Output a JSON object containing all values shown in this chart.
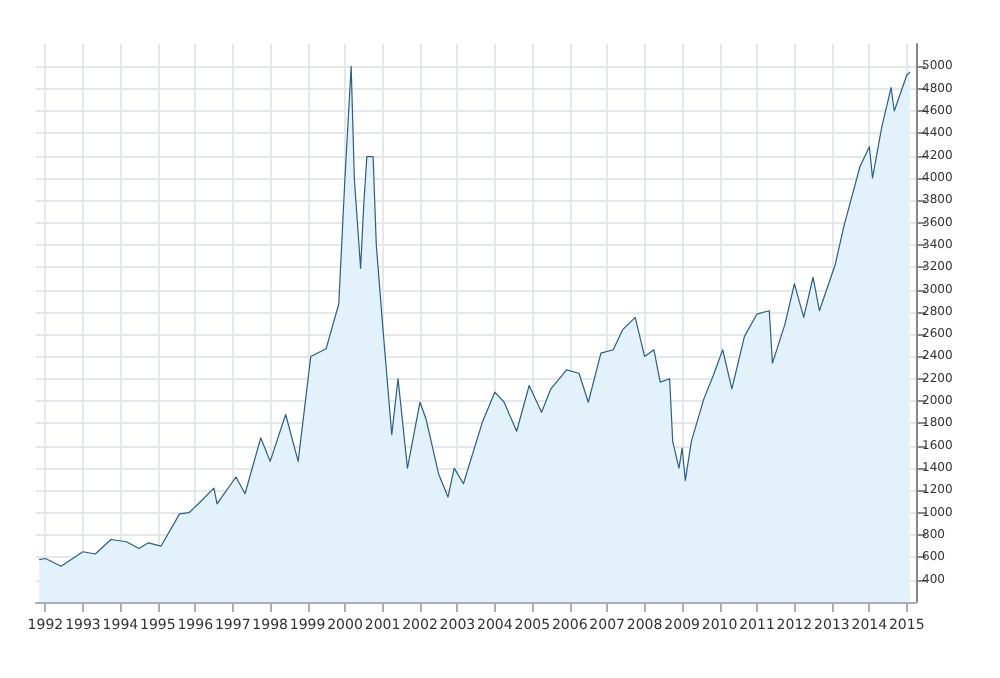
{
  "chart_data": {
    "type": "area",
    "x": [
      "1991-11",
      "1992-01",
      "1992-06",
      "1993-01",
      "1993-05",
      "1993-10",
      "1994-03",
      "1994-07",
      "1994-10",
      "1995-02",
      "1995-08",
      "1995-11",
      "1996-02",
      "1996-07",
      "1996-08",
      "1997-02",
      "1997-05",
      "1997-10",
      "1998-01",
      "1998-06",
      "1998-10",
      "1999-02",
      "1999-07",
      "1999-11",
      "2000-01",
      "2000-03",
      "2000-04",
      "2000-06",
      "2000-07",
      "2000-08",
      "2000-10",
      "2000-11",
      "2001-01",
      "2001-04",
      "2001-06",
      "2001-09",
      "2002-01",
      "2002-03",
      "2002-07",
      "2002-10",
      "2002-12",
      "2003-03",
      "2003-09",
      "2004-01",
      "2004-04",
      "2004-08",
      "2004-12",
      "2005-04",
      "2005-07",
      "2005-12",
      "2006-04",
      "2006-07",
      "2006-11",
      "2007-03",
      "2007-06",
      "2007-10",
      "2008-01",
      "2008-04",
      "2008-06",
      "2008-09",
      "2008-10",
      "2008-12",
      "2009-01",
      "2009-02",
      "2009-04",
      "2009-08",
      "2009-11",
      "2010-02",
      "2010-05",
      "2010-09",
      "2011-01",
      "2011-05",
      "2011-06",
      "2011-10",
      "2012-01",
      "2012-04",
      "2012-07",
      "2012-09",
      "2013-02",
      "2013-05",
      "2013-10",
      "2014-01",
      "2014-02",
      "2014-05",
      "2014-08",
      "2014-09",
      "2015-01",
      "2015-02"
    ],
    "series": [
      {
        "color": "#2a5f84",
        "values": [
          580,
          590,
          520,
          650,
          630,
          760,
          740,
          680,
          730,
          700,
          990,
          1000,
          1080,
          1220,
          1080,
          1320,
          1170,
          1670,
          1460,
          1880,
          1460,
          2400,
          2470,
          2870,
          4010,
          5000,
          3990,
          3190,
          3750,
          4190,
          4190,
          3400,
          2690,
          1700,
          2200,
          1400,
          1990,
          1840,
          1350,
          1140,
          1400,
          1260,
          1810,
          2080,
          1990,
          1730,
          2140,
          1900,
          2110,
          2280,
          2250,
          1990,
          2430,
          2460,
          2640,
          2750,
          2400,
          2460,
          2170,
          2200,
          1640,
          1400,
          1580,
          1290,
          1640,
          2020,
          2230,
          2460,
          2110,
          2580,
          2780,
          2810,
          2340,
          2690,
          3050,
          2750,
          3110,
          2810,
          3220,
          3580,
          4100,
          4280,
          4000,
          4450,
          4810,
          4600,
          4920,
          4950
        ]
      }
    ],
    "xlim": [
      "1991-10",
      "2015-04"
    ],
    "xticks": [
      "1992",
      "1993",
      "1994",
      "1995",
      "1996",
      "1997",
      "1998",
      "1999",
      "2000",
      "2001",
      "2002",
      "2003",
      "2004",
      "2005",
      "2006",
      "2007",
      "2008",
      "2009",
      "2010",
      "2011",
      "2012",
      "2013",
      "2014",
      "2015"
    ],
    "ylim": [
      200,
      5200
    ],
    "yticks": [
      400,
      600,
      800,
      1000,
      1200,
      1400,
      1600,
      1800,
      2000,
      2200,
      2400,
      2600,
      2800,
      3000,
      3200,
      3400,
      3600,
      3800,
      4000,
      4200,
      4400,
      4600,
      4800,
      5000
    ],
    "grid": true
  }
}
